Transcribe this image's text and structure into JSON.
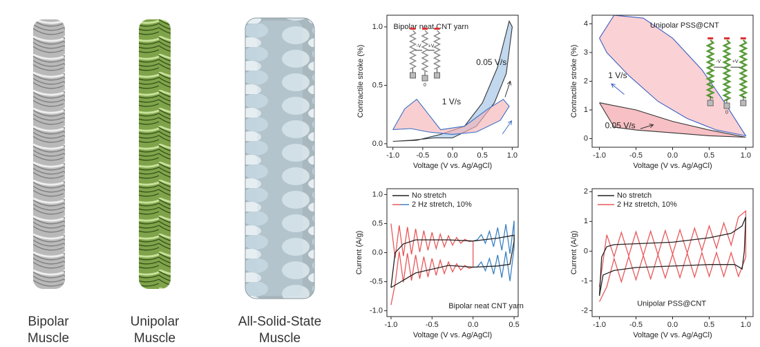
{
  "panels": [
    {
      "label": [
        "Bipolar",
        "Muscle"
      ]
    },
    {
      "label": [
        "Unipolar",
        "Muscle"
      ]
    },
    {
      "label": [
        "All-Solid-State",
        "Muscle"
      ]
    }
  ],
  "chart_data": [
    {
      "type": "line",
      "title": "Bipolar neat CNT yarn",
      "x_label": "Voltage (V vs. Ag/AgCl)",
      "y_label": "Contractile stroke (%)",
      "xlim": [
        -1.1,
        1.1
      ],
      "ylim": [
        -0.03,
        1.1
      ],
      "xticks": [
        {
          "value": -1,
          "label": "-1.0"
        },
        {
          "value": -0.5,
          "label": "-0.5"
        },
        {
          "value": 0,
          "label": "0.0"
        },
        {
          "value": 0.5,
          "label": "0.5"
        },
        {
          "value": 1,
          "label": "1.0"
        }
      ],
      "yticks": [
        {
          "value": 0,
          "label": "0.0"
        },
        {
          "value": 0.5,
          "label": "0.5"
        },
        {
          "value": 1,
          "label": "1.0"
        }
      ],
      "series": [
        {
          "color": "#333333",
          "fill": "#9fc3e6",
          "x": [
            -1,
            -0.6,
            -0.2,
            0.2,
            0.5,
            0.75,
            0.95,
            1.0,
            0.9,
            0.7,
            0.4,
            0,
            -0.3,
            -0.7,
            -1
          ],
          "values": [
            0.02,
            0.03,
            0.08,
            0.15,
            0.35,
            0.65,
            1.05,
            1.0,
            0.6,
            0.35,
            0.15,
            0.05,
            0.05,
            0.03,
            0.02
          ]
        },
        {
          "color": "#3b6fc4",
          "fill": "#f4b3b8",
          "x": [
            -1,
            -0.8,
            -0.6,
            -0.4,
            -0.2,
            0.2,
            0.6,
            0.85,
            0.95,
            0.8,
            0.4,
            0,
            -0.4,
            -0.7,
            -1
          ],
          "values": [
            0.12,
            0.3,
            0.38,
            0.25,
            0.12,
            0.15,
            0.3,
            0.38,
            0.32,
            0.2,
            0.1,
            0.08,
            0.1,
            0.13,
            0.12
          ]
        }
      ],
      "annotations": [
        {
          "text": "0.05 V/s",
          "color": "#222222"
        },
        {
          "text": "1 V/s",
          "color": "#3b6fc4"
        }
      ],
      "inset_labels": [
        "-V",
        "+V",
        "0"
      ]
    },
    {
      "type": "line",
      "title": "Unipolar PSS@CNT",
      "x_label": "Voltage (V vs. Ag/AgCl)",
      "y_label": "Contractile stroke (%)",
      "xlim": [
        -1.1,
        1.1
      ],
      "ylim": [
        -0.3,
        4.3
      ],
      "xticks": [
        {
          "value": -1,
          "label": "-1.0"
        },
        {
          "value": -0.5,
          "label": "-0.5"
        },
        {
          "value": 0,
          "label": "0.0"
        },
        {
          "value": 0.5,
          "label": "0.5"
        },
        {
          "value": 1,
          "label": "1.0"
        }
      ],
      "yticks": [
        0,
        1,
        2,
        3,
        4
      ],
      "series": [
        {
          "color": "#3b5fc4",
          "fill": "#f7b9bd",
          "x": [
            -1,
            -0.8,
            -0.4,
            0,
            0.4,
            0.7,
            1,
            0.6,
            0.2,
            -0.2,
            -0.6,
            -0.9,
            -1
          ],
          "values": [
            3.5,
            4.3,
            4.2,
            3.5,
            2.4,
            1.3,
            0.1,
            0.3,
            0.7,
            1.3,
            2.2,
            3.0,
            3.5
          ]
        },
        {
          "color": "#333333",
          "fill": "#f39ea4",
          "x": [
            -1,
            -0.5,
            0,
            0.5,
            1,
            0.5,
            0,
            -0.5,
            -0.8,
            -1
          ],
          "values": [
            1.25,
            1.0,
            0.6,
            0.3,
            0.05,
            0.1,
            0.2,
            0.3,
            0.4,
            1.25
          ]
        }
      ],
      "annotations": [
        {
          "text": "1 V/s",
          "color": "#3b5fc4"
        },
        {
          "text": "0.05 V/s",
          "color": "#222222"
        }
      ],
      "inset_labels": [
        "-V",
        "+V",
        "0"
      ]
    },
    {
      "type": "line",
      "title": "Bipolar neat CNT yarn",
      "x_label": "Voltage (V vs. Ag/AgCl)",
      "y_label": "Current (A/g)",
      "xlim": [
        -1.05,
        0.55
      ],
      "ylim": [
        -1.1,
        1.1
      ],
      "legend": "upper left",
      "xticks": [
        {
          "value": -1,
          "label": "-1.0"
        },
        {
          "value": -0.5,
          "label": "-0.5"
        },
        {
          "value": 0,
          "label": "0.0"
        },
        {
          "value": 0.5,
          "label": "0.5"
        }
      ],
      "yticks": [
        {
          "value": -1,
          "label": "-1.0"
        },
        {
          "value": -0.5,
          "label": "-0.5"
        },
        {
          "value": 0,
          "label": "0.0"
        },
        {
          "value": 0.5,
          "label": "0.5"
        },
        {
          "value": 1,
          "label": "1.0"
        }
      ],
      "series": [
        {
          "name": "2 Hz stretch, 10%",
          "color": "#e8585a",
          "x": [
            -1.0,
            -0.95,
            -0.9,
            -0.85,
            -0.8,
            -0.75,
            -0.7,
            -0.65,
            -0.6,
            -0.55,
            -0.5,
            -0.45,
            -0.4,
            -0.35,
            -0.3,
            -0.25,
            -0.2,
            -0.15,
            -0.1,
            -0.05,
            0.0,
            0.0,
            -0.05,
            -0.1,
            -0.15,
            -0.2,
            -0.25,
            -0.3,
            -0.35,
            -0.4,
            -0.45,
            -0.5,
            -0.55,
            -0.6,
            -0.65,
            -0.7,
            -0.75,
            -0.8,
            -0.85,
            -0.9,
            -0.95,
            -1.0
          ],
          "values": [
            0.5,
            -0.09,
            0.47,
            -0.06,
            0.44,
            -0.03,
            0.41,
            0.01,
            0.38,
            0.04,
            0.35,
            0.07,
            0.32,
            0.1,
            0.29,
            0.13,
            0.26,
            0.16,
            0.23,
            0.19,
            0.2,
            -0.25,
            -0.27,
            -0.22,
            -0.3,
            -0.19,
            -0.33,
            -0.16,
            -0.36,
            -0.13,
            -0.39,
            -0.1,
            -0.42,
            -0.07,
            -0.45,
            -0.04,
            -0.48,
            -0.01,
            -0.51,
            0.02,
            -0.54,
            -0.9
          ]
        },
        {
          "color": "#3b82c4",
          "x": [
            0.0,
            0.05,
            0.1,
            0.15,
            0.2,
            0.25,
            0.3,
            0.35,
            0.4,
            0.45,
            0.5,
            0.5,
            0.45,
            0.4,
            0.35,
            0.3,
            0.25,
            0.2,
            0.15,
            0.1,
            0.05,
            0.0
          ],
          "values": [
            0.2,
            0.22,
            0.31,
            0.16,
            0.37,
            0.1,
            0.43,
            0.04,
            0.49,
            -0.02,
            0.55,
            0.08,
            -0.49,
            0.02,
            -0.43,
            -0.04,
            -0.37,
            -0.1,
            -0.31,
            -0.16,
            -0.25,
            -0.25
          ]
        },
        {
          "name": "No stretch",
          "color": "#222222",
          "x": [
            -1,
            -0.95,
            -0.85,
            -0.7,
            -0.3,
            0,
            0.3,
            0.5,
            0.5,
            0.45,
            0.3,
            0,
            -0.3,
            -0.7,
            -1
          ],
          "values": [
            -0.6,
            0,
            0.15,
            0.22,
            0.22,
            0.2,
            0.25,
            0.3,
            0.2,
            -0.2,
            -0.23,
            -0.25,
            -0.22,
            -0.35,
            -0.6
          ]
        }
      ],
      "legend_order": [
        2,
        0
      ]
    },
    {
      "type": "line",
      "title": "Unipolar PSS@CNT",
      "x_label": "Voltage (V vs. Ag/AgCl)",
      "y_label": "Current (A/g)",
      "xlim": [
        -1.1,
        1.1
      ],
      "ylim": [
        -2.2,
        2.1
      ],
      "legend": "upper left",
      "xticks": [
        {
          "value": -1,
          "label": "-1.0"
        },
        {
          "value": -0.5,
          "label": "-0.5"
        },
        {
          "value": 0,
          "label": "0.0"
        },
        {
          "value": 0.5,
          "label": "0.5"
        },
        {
          "value": 1,
          "label": "1.0"
        }
      ],
      "yticks": [
        -2,
        -1,
        0,
        1,
        2
      ],
      "series": [
        {
          "name": "2 Hz stretch, 10%",
          "color": "#e8585a",
          "x": [
            -1.0,
            -0.9,
            -0.8,
            -0.7,
            -0.6,
            -0.5,
            -0.4,
            -0.3,
            -0.2,
            -0.1,
            0.0,
            0.1,
            0.2,
            0.3,
            0.4,
            0.5,
            0.6,
            0.7,
            0.8,
            0.9,
            1.0,
            1.0,
            0.9,
            0.8,
            0.7,
            0.6,
            0.5,
            0.4,
            0.3,
            0.2,
            0.1,
            0.0,
            -0.1,
            -0.2,
            -0.3,
            -0.4,
            -0.5,
            -0.6,
            -0.7,
            -0.8,
            -0.9,
            -1.0
          ],
          "values": [
            -1.2,
            0.55,
            -0.18,
            0.63,
            -0.16,
            0.65,
            -0.14,
            0.67,
            -0.12,
            0.69,
            -0.1,
            0.72,
            -0.06,
            0.77,
            0.02,
            0.85,
            0.1,
            0.95,
            0.2,
            1.15,
            1.35,
            -0.2,
            -0.85,
            -0.05,
            -0.85,
            -0.05,
            -0.85,
            -0.05,
            -0.87,
            -0.07,
            -0.89,
            -0.1,
            -0.9,
            -0.12,
            -0.93,
            -0.15,
            -0.96,
            -0.18,
            -1.03,
            -0.25,
            -1.2,
            -1.7
          ]
        },
        {
          "name": "No stretch",
          "color": "#222222",
          "x": [
            -1,
            -0.97,
            -0.9,
            -0.8,
            -0.5,
            0,
            0.5,
            0.8,
            0.95,
            1.0,
            0.98,
            0.95,
            0.85,
            0.5,
            0,
            -0.5,
            -0.8,
            -0.95,
            -1
          ],
          "values": [
            -1.5,
            -0.2,
            0.15,
            0.22,
            0.25,
            0.3,
            0.45,
            0.6,
            0.85,
            1.15,
            0.0,
            -0.6,
            -0.45,
            -0.45,
            -0.5,
            -0.55,
            -0.65,
            -0.8,
            -1.5
          ]
        }
      ],
      "legend_order": [
        1,
        0
      ]
    }
  ]
}
